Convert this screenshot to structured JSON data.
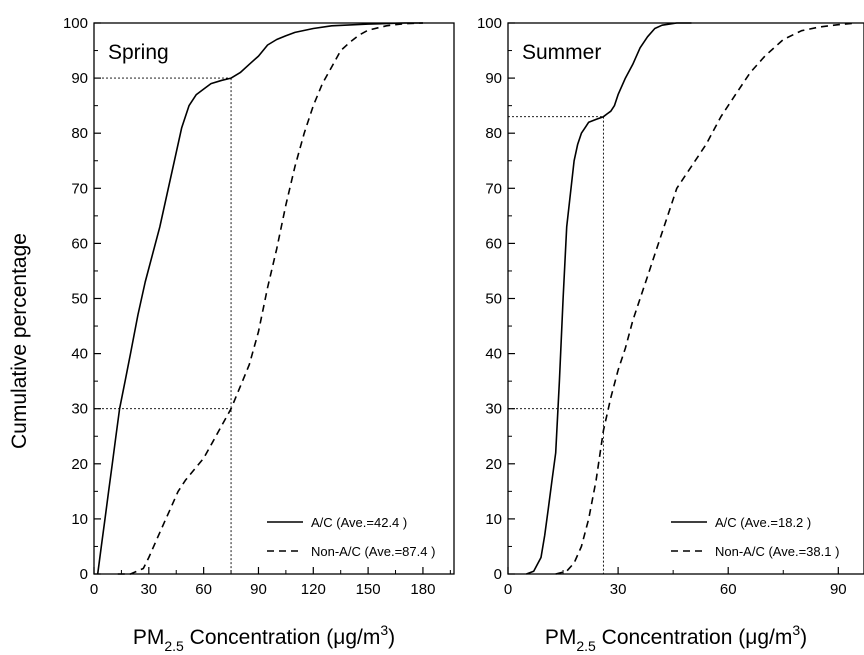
{
  "chart_data": [
    {
      "type": "line",
      "title": "Spring",
      "xlabel": {
        "base": "PM",
        "sub": "2.5",
        "rest": " Concentration (μg/m",
        "sup": "3",
        "close": ")"
      },
      "ylabel": "Cumulative percentage",
      "xlim": [
        0,
        197
      ],
      "ylim": [
        0,
        100
      ],
      "xticks": [
        0,
        30,
        60,
        90,
        120,
        150,
        180
      ],
      "yticks": [
        0,
        10,
        20,
        30,
        40,
        50,
        60,
        70,
        80,
        90,
        100
      ],
      "grid": false,
      "legend": "bottom-right",
      "series": [
        {
          "name": "A/C (Ave.=42.4 )",
          "style": "solid",
          "x": [
            2,
            4,
            6,
            8,
            10,
            12,
            14,
            17,
            20,
            24,
            28,
            32,
            36,
            40,
            44,
            48,
            52,
            56,
            60,
            64,
            70,
            75,
            80,
            85,
            90,
            95,
            100,
            105,
            110,
            120,
            130,
            150,
            170,
            180
          ],
          "y": [
            0,
            5,
            10,
            15,
            20,
            25,
            30,
            35,
            40,
            47,
            53,
            58,
            63,
            69,
            75,
            81,
            85,
            87,
            88,
            89,
            89.6,
            90,
            91,
            92.5,
            94,
            96,
            97,
            97.7,
            98.3,
            99,
            99.5,
            99.8,
            100,
            100
          ]
        },
        {
          "name": "Non-A/C (Ave.=87.4 )",
          "style": "dashed",
          "x": [
            13,
            20,
            27,
            30,
            34,
            38,
            42,
            46,
            50,
            55,
            60,
            65,
            70,
            75,
            80,
            85,
            90,
            95,
            100,
            105,
            110,
            115,
            120,
            125,
            130,
            135,
            140,
            145,
            150,
            160,
            170,
            180
          ],
          "y": [
            0,
            0,
            1,
            3,
            6,
            9,
            12,
            15,
            17,
            19,
            21,
            24,
            27,
            30,
            34,
            38,
            44,
            52,
            59,
            67,
            74,
            80,
            85,
            89,
            92,
            95,
            96.5,
            97.8,
            98.7,
            99.5,
            99.9,
            100
          ]
        }
      ],
      "annotations": [
        {
          "type": "guide",
          "x": 75,
          "y": 90
        },
        {
          "type": "guide",
          "x": 75,
          "y": 30
        }
      ]
    },
    {
      "type": "line",
      "title": "Summer",
      "xlabel": {
        "base": "PM",
        "sub": "2.5",
        "rest": " Concentration (μg/m",
        "sup": "3",
        "close": ")"
      },
      "ylabel": "",
      "xlim": [
        0,
        97
      ],
      "ylim": [
        0,
        100
      ],
      "xticks": [
        0,
        30,
        60,
        90
      ],
      "yticks": [
        0,
        10,
        20,
        30,
        40,
        50,
        60,
        70,
        80,
        90,
        100
      ],
      "grid": false,
      "legend": "bottom-right",
      "series": [
        {
          "name": "A/C (Ave.=18.2 )",
          "style": "solid",
          "x": [
            5,
            7,
            9,
            10,
            11,
            12,
            13,
            14,
            15,
            16,
            17,
            18,
            19,
            20,
            21,
            22,
            24,
            26,
            27,
            28,
            29,
            30,
            32,
            34,
            36,
            38,
            40,
            42,
            44,
            46,
            50
          ],
          "y": [
            0,
            0.5,
            3,
            7,
            12,
            17,
            22,
            35,
            50,
            63,
            69,
            75,
            78,
            80,
            81,
            82,
            82.5,
            83,
            83.5,
            84,
            85,
            87,
            90,
            92.5,
            95.5,
            97.5,
            99,
            99.6,
            99.8,
            100,
            100
          ]
        },
        {
          "name": "Non-A/C (Ave.=38.1 )",
          "style": "dashed",
          "x": [
            13,
            16,
            18,
            20,
            22,
            24,
            26,
            28,
            30,
            32,
            34,
            36,
            38,
            40,
            43,
            46,
            50,
            54,
            58,
            62,
            66,
            70,
            75,
            80,
            85,
            90,
            95
          ],
          "y": [
            0,
            0.5,
            2,
            5,
            10,
            17,
            26,
            32,
            37,
            41,
            46,
            50,
            54,
            58,
            64,
            70,
            74,
            78,
            83,
            87,
            91,
            94,
            97,
            98.6,
            99.3,
            99.7,
            100
          ]
        }
      ],
      "annotations": [
        {
          "type": "guide",
          "x": 26,
          "y": 83
        },
        {
          "type": "guide",
          "x": 26,
          "y": 30
        }
      ]
    }
  ]
}
